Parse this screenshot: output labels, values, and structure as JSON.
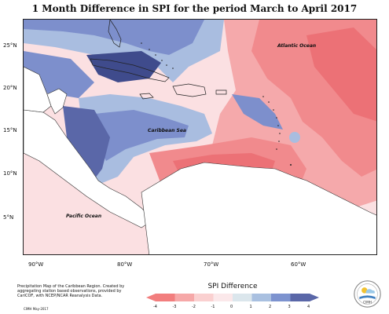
{
  "title": "1 Month Difference in SPI for the period March to April 2017",
  "lat_labels": [
    "25°N",
    "20°N",
    "15°N",
    "10°N",
    "5°N"
  ],
  "lon_labels": [
    "90°W",
    "80°W",
    "70°W",
    "60°W"
  ],
  "oceans": {
    "atlantic": "Atlantic Ocean",
    "caribbean": "Caribbean Sea",
    "pacific": "Pacific Ocean"
  },
  "footer": {
    "description": "Precipitation Map of the Caribbean Region. Created by aggregating station based observations, provided by CariCOF, with NCEP/NCAR Reanalysis Data.",
    "credit": "CIMH May-2017"
  },
  "legend": {
    "title": "SPI Difference",
    "ticks": [
      "-4",
      "-3",
      "-2",
      "-1",
      "0",
      "1",
      "2",
      "3",
      "4"
    ],
    "colors": [
      "#f27e7e",
      "#f6a8a8",
      "#fad0d0",
      "#fbe8ea",
      "#dbe6ec",
      "#a9c0e0",
      "#7d93cf",
      "#5a67a8"
    ]
  },
  "logo_label": "CIMH"
}
